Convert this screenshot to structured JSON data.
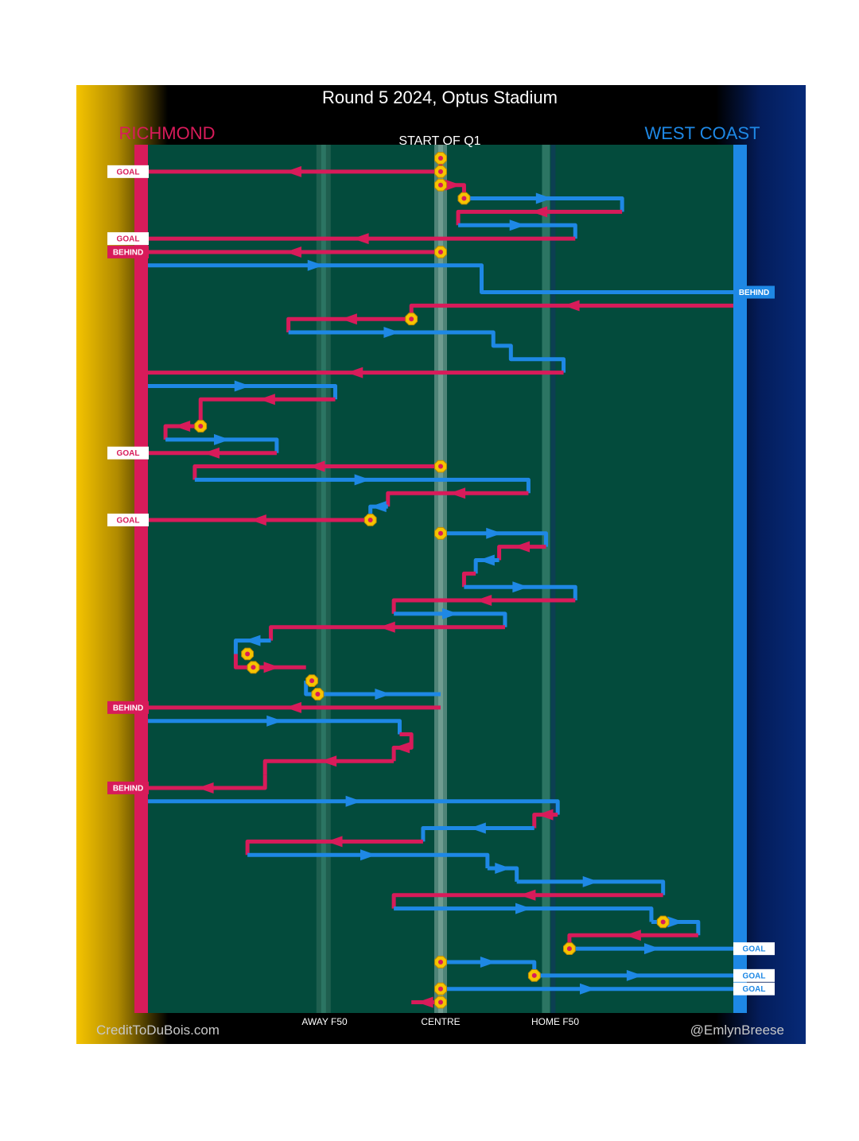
{
  "chart_data": {
    "type": "line",
    "title": "Round 5 2024, Optus Stadium",
    "subtitle": "START OF Q1",
    "teams": {
      "left": {
        "name": "RICHMOND",
        "color": "#d81b5a",
        "theme": "#f5c400"
      },
      "right": {
        "name": "WEST COAST",
        "color": "#1e88e5",
        "theme": "#062a78"
      }
    },
    "x_axis_labels": [
      "AWAY F50",
      "CENTRE",
      "HOME F50"
    ],
    "x_domain": [
      0,
      100
    ],
    "x_marks": {
      "away_f50": 30,
      "centre": 50,
      "home_f50": 68
    },
    "pitch_color": "#034b3c",
    "events": [
      {
        "team": "R",
        "path": [
          [
            50,
            0
          ],
          [
            50,
            1
          ],
          [
            0,
            1
          ]
        ],
        "result": "GOAL"
      },
      {
        "team": "R",
        "path": [
          [
            50,
            2
          ],
          [
            54,
            2
          ],
          [
            54,
            3
          ]
        ]
      },
      {
        "team": "W",
        "path": [
          [
            54,
            3
          ],
          [
            54,
            3
          ],
          [
            81,
            3
          ],
          [
            81,
            4
          ]
        ]
      },
      {
        "team": "R",
        "path": [
          [
            81,
            4
          ],
          [
            53,
            4
          ],
          [
            53,
            5
          ]
        ]
      },
      {
        "team": "W",
        "path": [
          [
            53,
            5
          ],
          [
            73,
            5
          ],
          [
            73,
            6
          ]
        ]
      },
      {
        "team": "R",
        "path": [
          [
            73,
            6
          ],
          [
            0,
            6
          ]
        ],
        "result": "GOAL"
      },
      {
        "team": "R",
        "path": [
          [
            50,
            7
          ],
          [
            0,
            7
          ]
        ],
        "result": "BEHIND"
      },
      {
        "team": "W",
        "path": [
          [
            0,
            8
          ],
          [
            57,
            8
          ],
          [
            57,
            10
          ],
          [
            100,
            10
          ]
        ],
        "result": "BEHIND"
      },
      {
        "team": "R",
        "path": [
          [
            100,
            11
          ],
          [
            45,
            11
          ],
          [
            45,
            12
          ]
        ]
      },
      {
        "team": "R",
        "path": [
          [
            45,
            12
          ],
          [
            24,
            12
          ],
          [
            24,
            13
          ]
        ]
      },
      {
        "team": "W",
        "path": [
          [
            24,
            13
          ],
          [
            59,
            13
          ],
          [
            59,
            14
          ],
          [
            62,
            14
          ],
          [
            62,
            15
          ],
          [
            71,
            15
          ],
          [
            71,
            16
          ]
        ]
      },
      {
        "team": "R",
        "path": [
          [
            71,
            16
          ],
          [
            0,
            16
          ]
        ]
      },
      {
        "team": "W",
        "path": [
          [
            0,
            17
          ],
          [
            32,
            17
          ],
          [
            32,
            18
          ]
        ]
      },
      {
        "team": "R",
        "path": [
          [
            32,
            18
          ],
          [
            9,
            18
          ],
          [
            9,
            19
          ],
          [
            9,
            20
          ]
        ]
      },
      {
        "team": "R",
        "path": [
          [
            9,
            20
          ],
          [
            3,
            20
          ],
          [
            3,
            21
          ]
        ]
      },
      {
        "team": "W",
        "path": [
          [
            3,
            21
          ],
          [
            22,
            21
          ],
          [
            22,
            22
          ]
        ]
      },
      {
        "team": "R",
        "path": [
          [
            22,
            22
          ],
          [
            0,
            22
          ]
        ],
        "result": "GOAL"
      },
      {
        "team": "R",
        "path": [
          [
            50,
            23
          ],
          [
            8,
            23
          ],
          [
            8,
            24
          ]
        ]
      },
      {
        "team": "W",
        "path": [
          [
            8,
            24
          ],
          [
            65,
            24
          ],
          [
            65,
            25
          ]
        ]
      },
      {
        "team": "R",
        "path": [
          [
            65,
            25
          ],
          [
            41,
            25
          ],
          [
            41,
            26
          ]
        ]
      },
      {
        "team": "W",
        "path": [
          [
            41,
            26
          ],
          [
            38,
            26
          ],
          [
            38,
            27
          ]
        ]
      },
      {
        "team": "R",
        "path": [
          [
            38,
            27
          ],
          [
            0,
            27
          ]
        ],
        "result": "GOAL"
      },
      {
        "team": "W",
        "path": [
          [
            50,
            28
          ],
          [
            68,
            28
          ],
          [
            68,
            29
          ]
        ]
      },
      {
        "team": "R",
        "path": [
          [
            68,
            29
          ],
          [
            60,
            29
          ],
          [
            60,
            30
          ]
        ]
      },
      {
        "team": "W",
        "path": [
          [
            60,
            30
          ],
          [
            56,
            30
          ],
          [
            56,
            31
          ]
        ]
      },
      {
        "team": "R",
        "path": [
          [
            56,
            31
          ],
          [
            54,
            31
          ],
          [
            54,
            32
          ]
        ]
      },
      {
        "team": "W",
        "path": [
          [
            54,
            32
          ],
          [
            73,
            32
          ],
          [
            73,
            33
          ]
        ]
      },
      {
        "team": "R",
        "path": [
          [
            73,
            33
          ],
          [
            42,
            33
          ],
          [
            42,
            34
          ]
        ]
      },
      {
        "team": "W",
        "path": [
          [
            42,
            34
          ],
          [
            61,
            34
          ],
          [
            61,
            35
          ]
        ]
      },
      {
        "team": "R",
        "path": [
          [
            61,
            35
          ],
          [
            21,
            35
          ],
          [
            21,
            36
          ]
        ]
      },
      {
        "team": "W",
        "path": [
          [
            21,
            36
          ],
          [
            15,
            36
          ],
          [
            15,
            37
          ]
        ]
      },
      {
        "team": "R",
        "path": [
          [
            15,
            37
          ],
          [
            15,
            38
          ],
          [
            27,
            38
          ]
        ]
      },
      {
        "team": "W",
        "path": [
          [
            27,
            39
          ],
          [
            27,
            40
          ],
          [
            30,
            40
          ],
          [
            50,
            40
          ]
        ]
      },
      {
        "team": "R",
        "path": [
          [
            50,
            41
          ],
          [
            0,
            41
          ]
        ],
        "result": "BEHIND"
      },
      {
        "team": "W",
        "path": [
          [
            0,
            42
          ],
          [
            43,
            42
          ],
          [
            43,
            43
          ]
        ]
      },
      {
        "team": "R",
        "path": [
          [
            43,
            43
          ],
          [
            45,
            43
          ],
          [
            45,
            44
          ],
          [
            42,
            44
          ],
          [
            42,
            45
          ]
        ]
      },
      {
        "team": "R",
        "path": [
          [
            42,
            45
          ],
          [
            20,
            45
          ],
          [
            20,
            46
          ]
        ]
      },
      {
        "team": "R",
        "path": [
          [
            20,
            46
          ],
          [
            20,
            47
          ],
          [
            0,
            47
          ]
        ],
        "result": "BEHIND"
      },
      {
        "team": "W",
        "path": [
          [
            0,
            48
          ],
          [
            70,
            48
          ],
          [
            70,
            49
          ]
        ]
      },
      {
        "team": "R",
        "path": [
          [
            70,
            49
          ],
          [
            66,
            49
          ],
          [
            66,
            50
          ]
        ]
      },
      {
        "team": "W",
        "path": [
          [
            66,
            50
          ],
          [
            47,
            50
          ],
          [
            47,
            51
          ]
        ]
      },
      {
        "team": "R",
        "path": [
          [
            47,
            51
          ],
          [
            17,
            51
          ],
          [
            17,
            52
          ]
        ]
      },
      {
        "team": "W",
        "path": [
          [
            17,
            52
          ],
          [
            58,
            52
          ],
          [
            58,
            53
          ]
        ]
      },
      {
        "team": "W",
        "path": [
          [
            58,
            53
          ],
          [
            63,
            53
          ],
          [
            63,
            54
          ]
        ]
      },
      {
        "team": "W",
        "path": [
          [
            63,
            54
          ],
          [
            88,
            54
          ],
          [
            88,
            55
          ]
        ]
      },
      {
        "team": "R",
        "path": [
          [
            88,
            55
          ],
          [
            42,
            55
          ],
          [
            42,
            56
          ]
        ]
      },
      {
        "team": "W",
        "path": [
          [
            42,
            56
          ],
          [
            86,
            56
          ],
          [
            86,
            57
          ]
        ]
      },
      {
        "team": "W",
        "path": [
          [
            86,
            57
          ],
          [
            94,
            57
          ],
          [
            94,
            58
          ]
        ]
      },
      {
        "team": "R",
        "path": [
          [
            94,
            58
          ],
          [
            72,
            58
          ],
          [
            72,
            59
          ]
        ]
      },
      {
        "team": "W",
        "path": [
          [
            72,
            59
          ],
          [
            100,
            59
          ]
        ],
        "result": "GOAL"
      },
      {
        "team": "W",
        "path": [
          [
            50,
            60
          ],
          [
            66,
            60
          ],
          [
            66,
            61
          ]
        ]
      },
      {
        "team": "W",
        "path": [
          [
            66,
            61
          ],
          [
            100,
            61
          ]
        ],
        "result": "GOAL"
      },
      {
        "team": "W",
        "path": [
          [
            50,
            62
          ],
          [
            100,
            62
          ]
        ],
        "result": "GOAL"
      },
      {
        "team": "R",
        "path": [
          [
            50,
            63
          ],
          [
            45,
            63
          ]
        ]
      }
    ],
    "stoppages": [
      [
        50,
        0
      ],
      [
        50,
        1
      ],
      [
        50,
        2
      ],
      [
        54,
        3
      ],
      [
        50,
        7
      ],
      [
        45,
        12
      ],
      [
        9,
        20
      ],
      [
        50,
        23
      ],
      [
        38,
        27
      ],
      [
        50,
        28
      ],
      [
        17,
        37
      ],
      [
        18,
        38
      ],
      [
        28,
        39
      ],
      [
        29,
        40
      ],
      [
        88,
        57
      ],
      [
        72,
        59
      ],
      [
        50,
        60
      ],
      [
        66,
        61
      ],
      [
        50,
        62
      ],
      [
        50,
        63
      ]
    ],
    "rows": 64
  },
  "credits": {
    "left": "CreditToDuBois.com",
    "right": "@EmlynBreese"
  }
}
